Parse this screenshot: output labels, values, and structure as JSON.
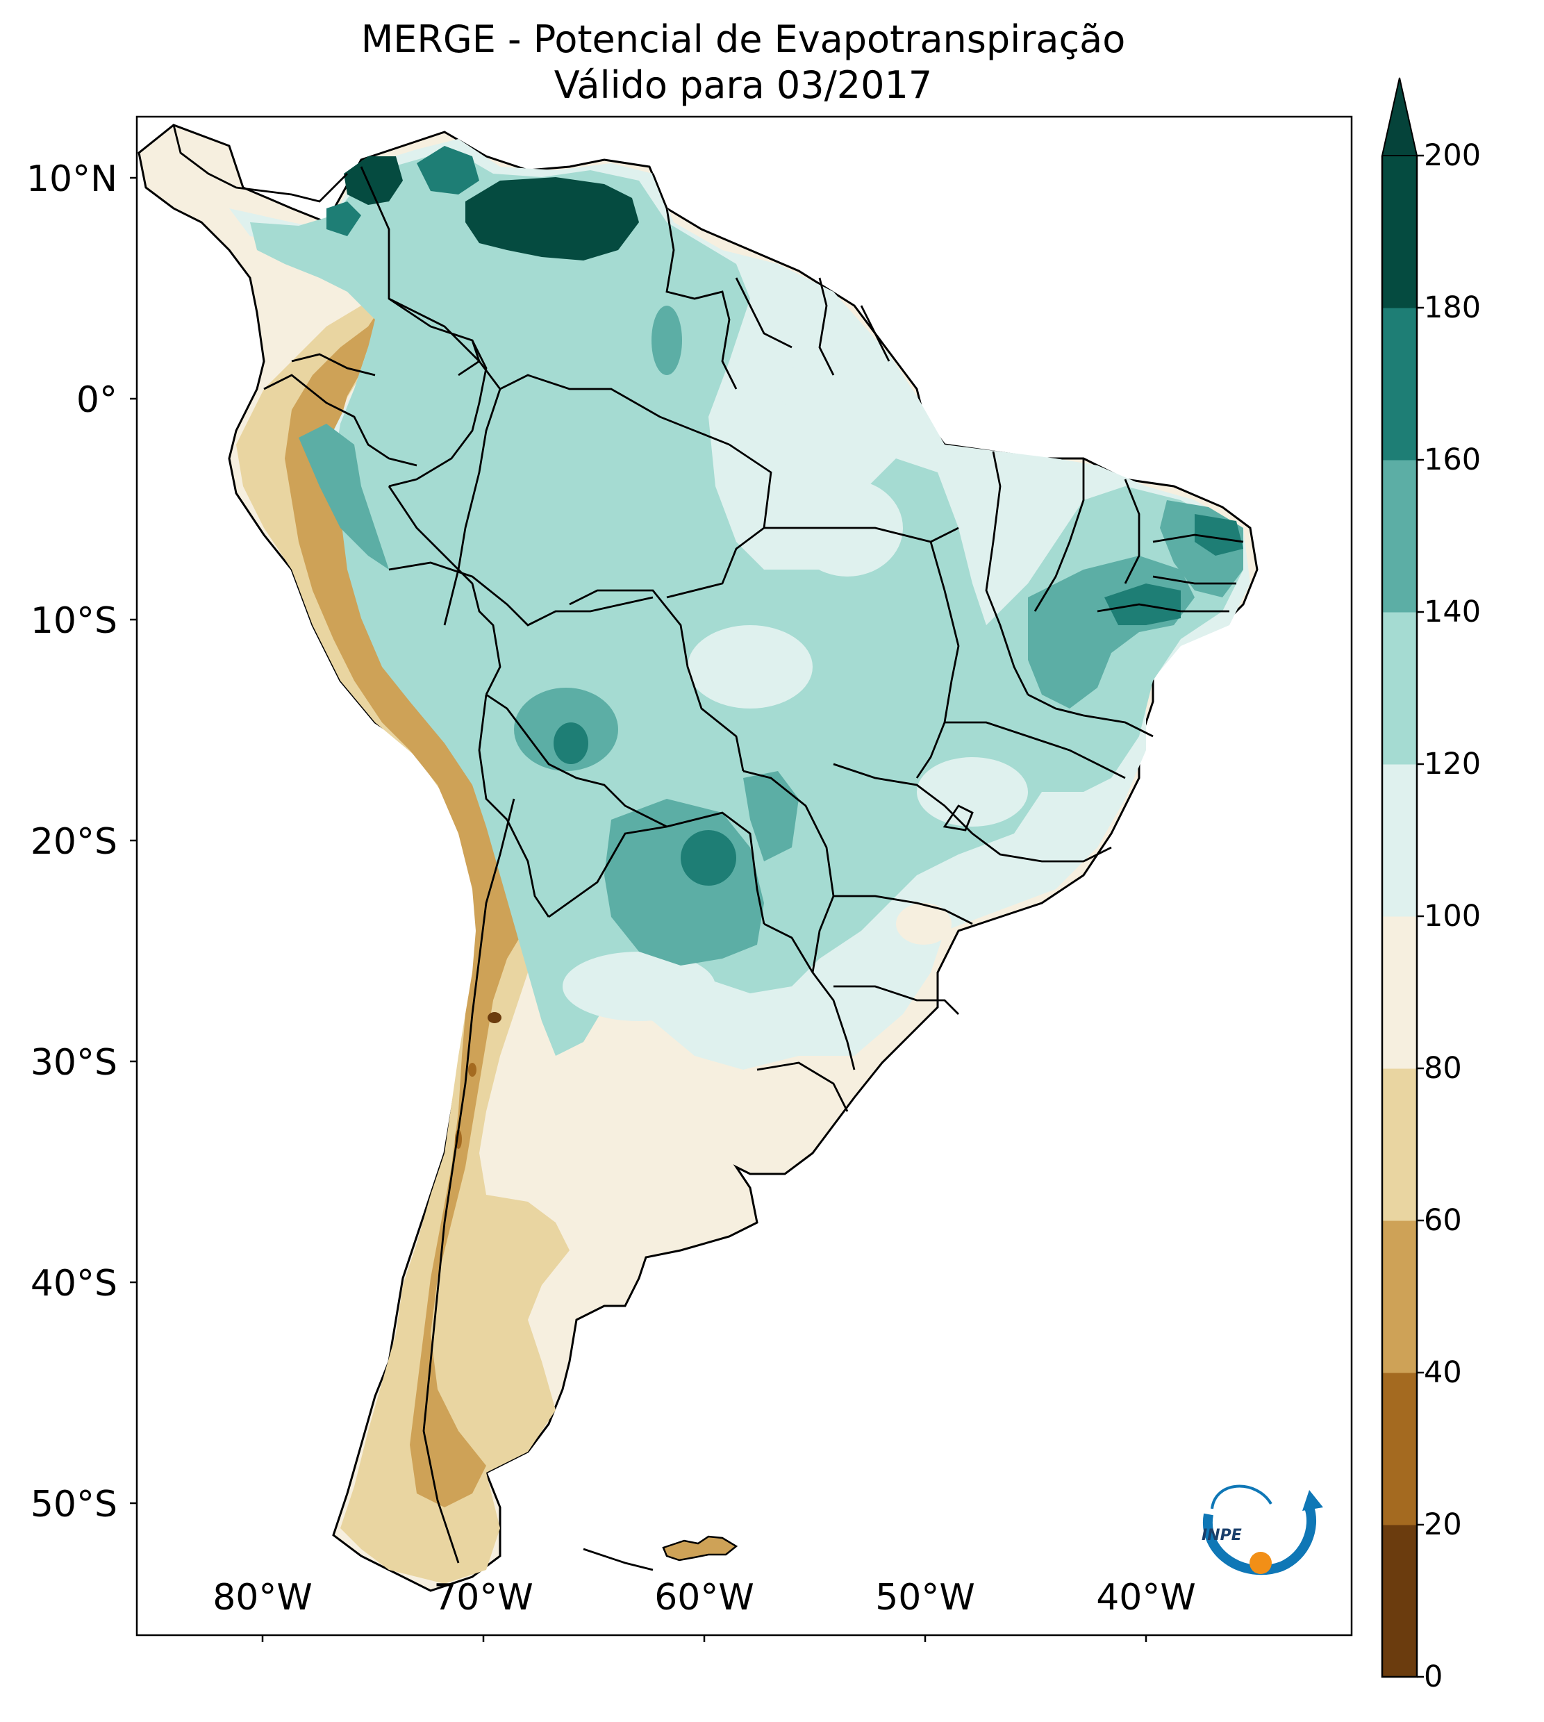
{
  "title": {
    "line1": "MERGE - Potencial de Evapotranspiração",
    "line2": "Válido para 03/2017"
  },
  "axes": {
    "lat_labels": [
      "10°N",
      "0°",
      "10°S",
      "20°S",
      "30°S",
      "40°S",
      "50°S"
    ],
    "lon_labels": [
      "80°W",
      "70°W",
      "60°W",
      "50°W",
      "40°W"
    ]
  },
  "colorbar": {
    "ticks": [
      "0",
      "20",
      "40",
      "60",
      "80",
      "100",
      "120",
      "140",
      "160",
      "180",
      "200"
    ],
    "colors": [
      "#6b3c0e",
      "#a46a20",
      "#cea257",
      "#e9d5a1",
      "#f6efdf",
      "#dff1ee",
      "#a5dbd2",
      "#5caea5",
      "#1e7e75",
      "#054b40"
    ],
    "extend_color": "#05433a",
    "extend": "max"
  },
  "logo": {
    "text": "INPE",
    "primary_color": "#0f77b6",
    "accent_color": "#f28f17"
  },
  "map_colors": {
    "ocean": "#ffffff",
    "border": "#000000"
  }
}
